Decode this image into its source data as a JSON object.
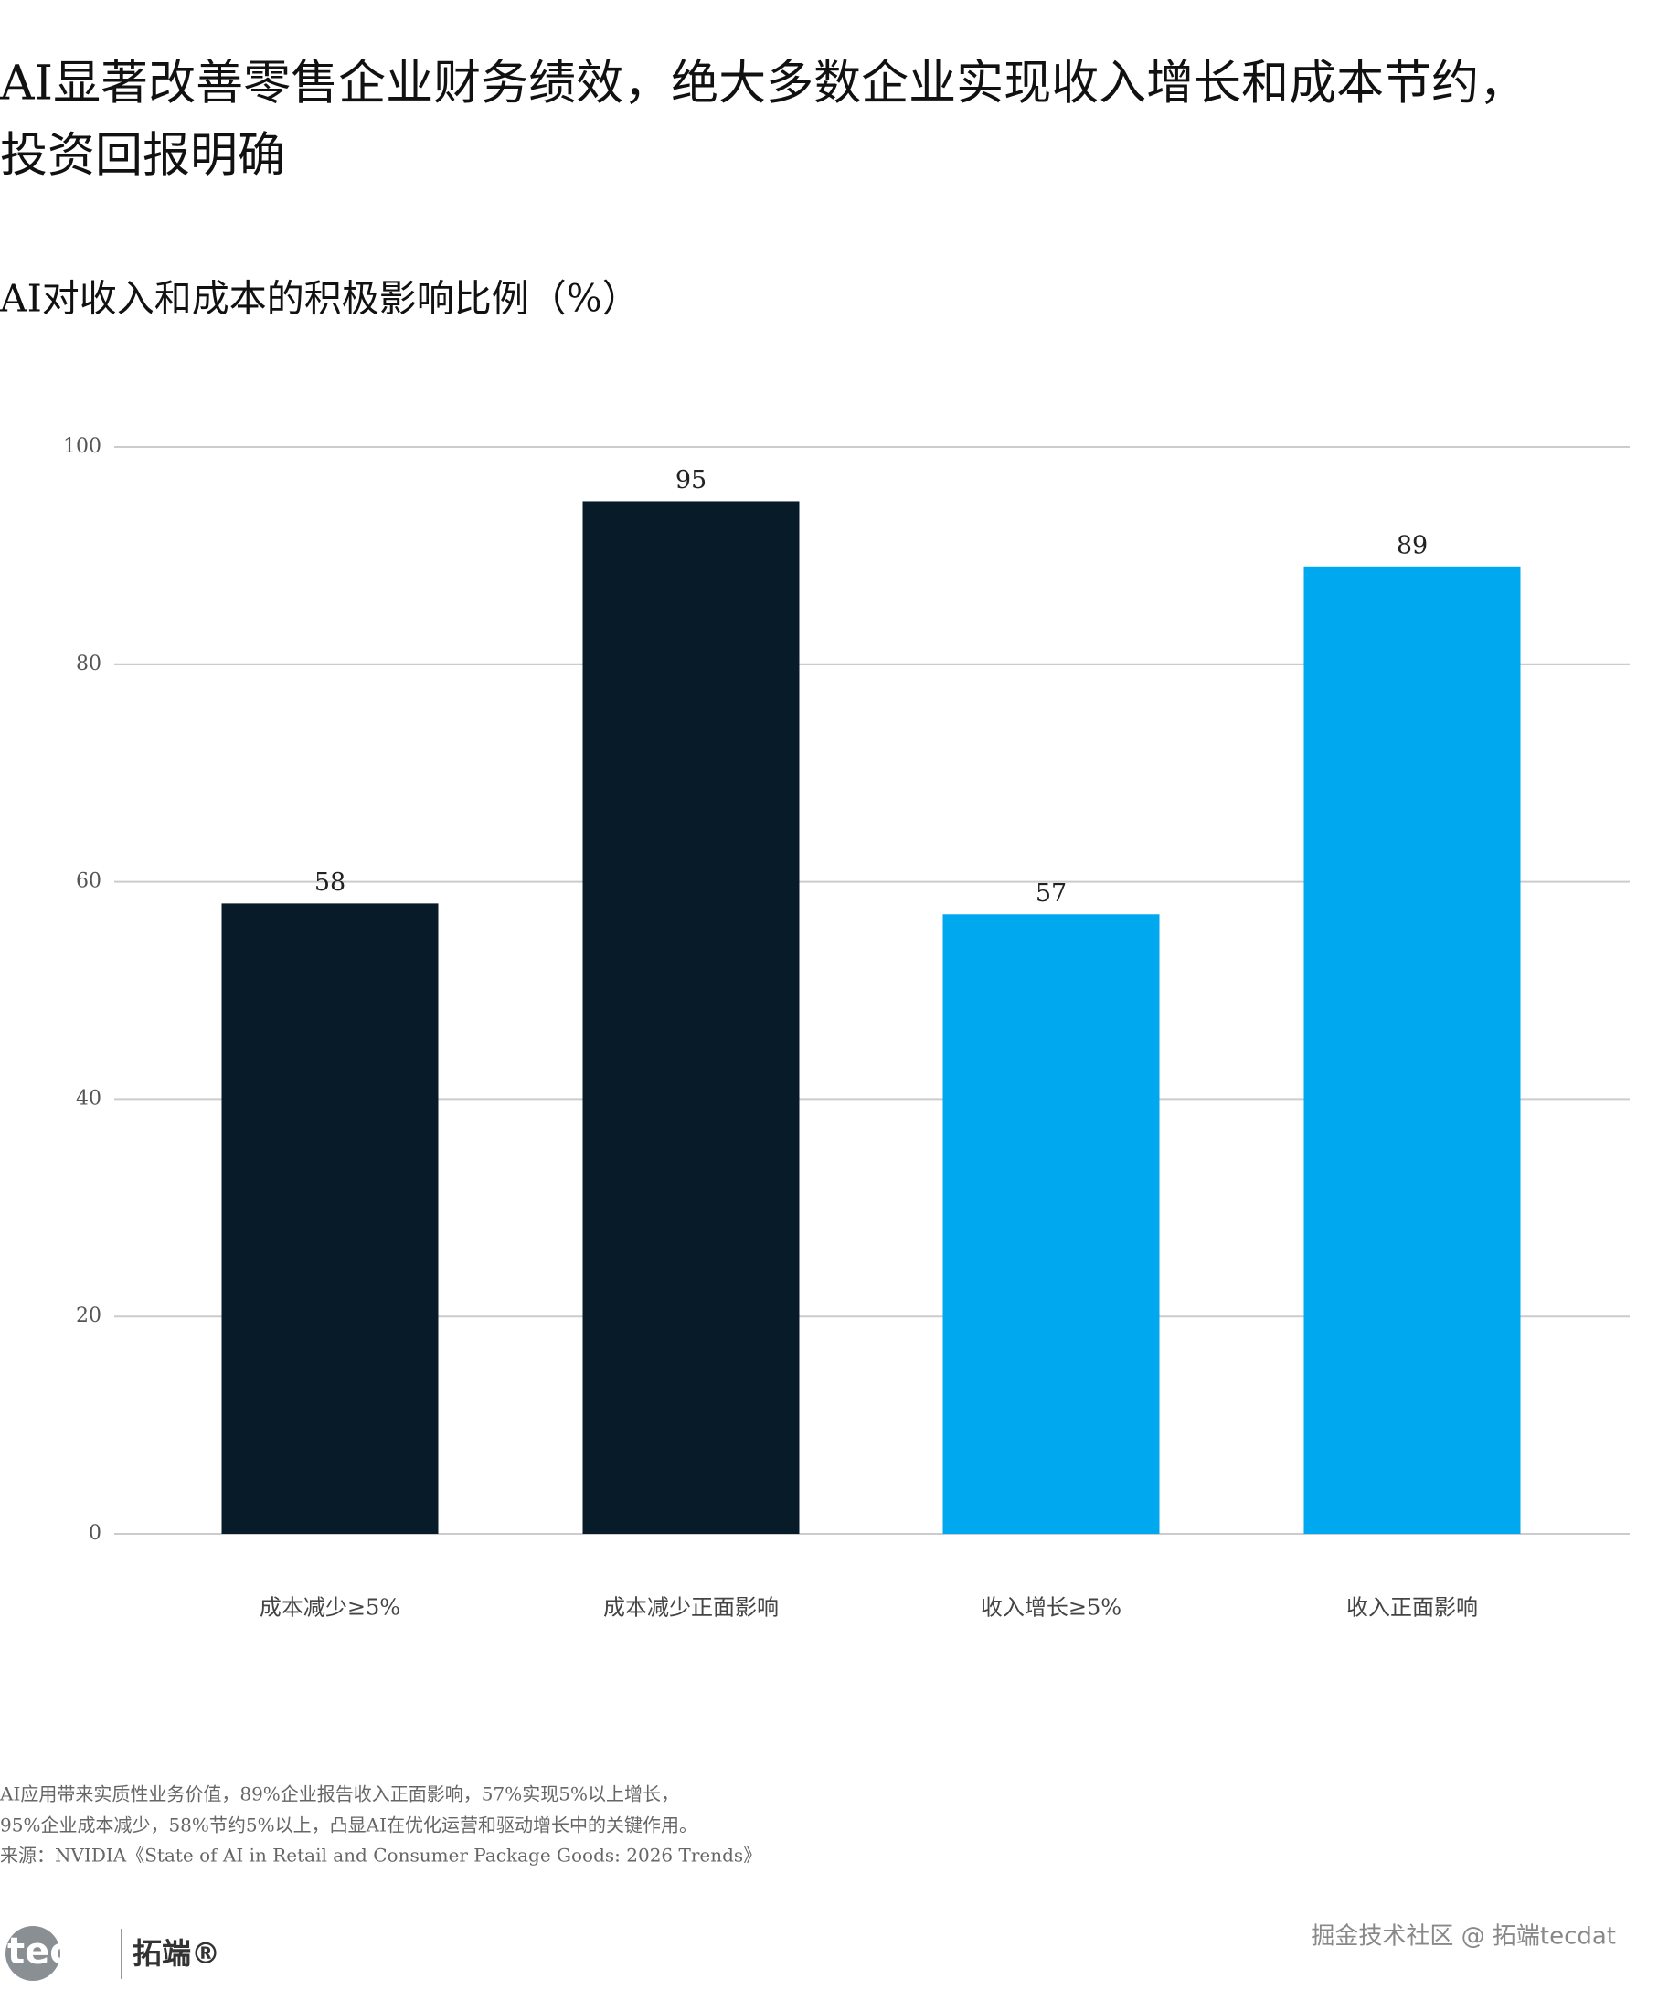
{
  "chart_data": {
    "type": "bar",
    "title": [
      "AI显著改善零售企业财务绩效，绝大多数企业实现收入增长和成本节约，",
      "投资回报明确"
    ],
    "subtitle": "AI对收入和成本的积极影响比例（%）",
    "categories": [
      "成本减少≥5%",
      "成本减少正面影响",
      "收入增长≥5%",
      "收入正面影响"
    ],
    "values": [
      58,
      95,
      57,
      89
    ],
    "colors": [
      "#071c28",
      "#071c28",
      "#00a8f0",
      "#00a8f0"
    ],
    "ylim": [
      0,
      100
    ],
    "yticks": [
      0,
      20,
      40,
      60,
      80,
      100
    ],
    "grid": true,
    "notes": [
      "AI应用带来实质性业务价值，89%企业报告收入正面影响，57%实现5%以上增长，",
      "95%企业成本减少，58%节约5%以上，凸显AI在优化运营和驱动增长中的关键作用。",
      "来源：NVIDIA《State of AI in Retail and Consumer Package Goods: 2026 Trends》"
    ]
  },
  "branding": {
    "logo": "tecdat",
    "logo_cn": "拓端®",
    "watermark": "掘金技术社区 @ 拓端tecdat"
  }
}
